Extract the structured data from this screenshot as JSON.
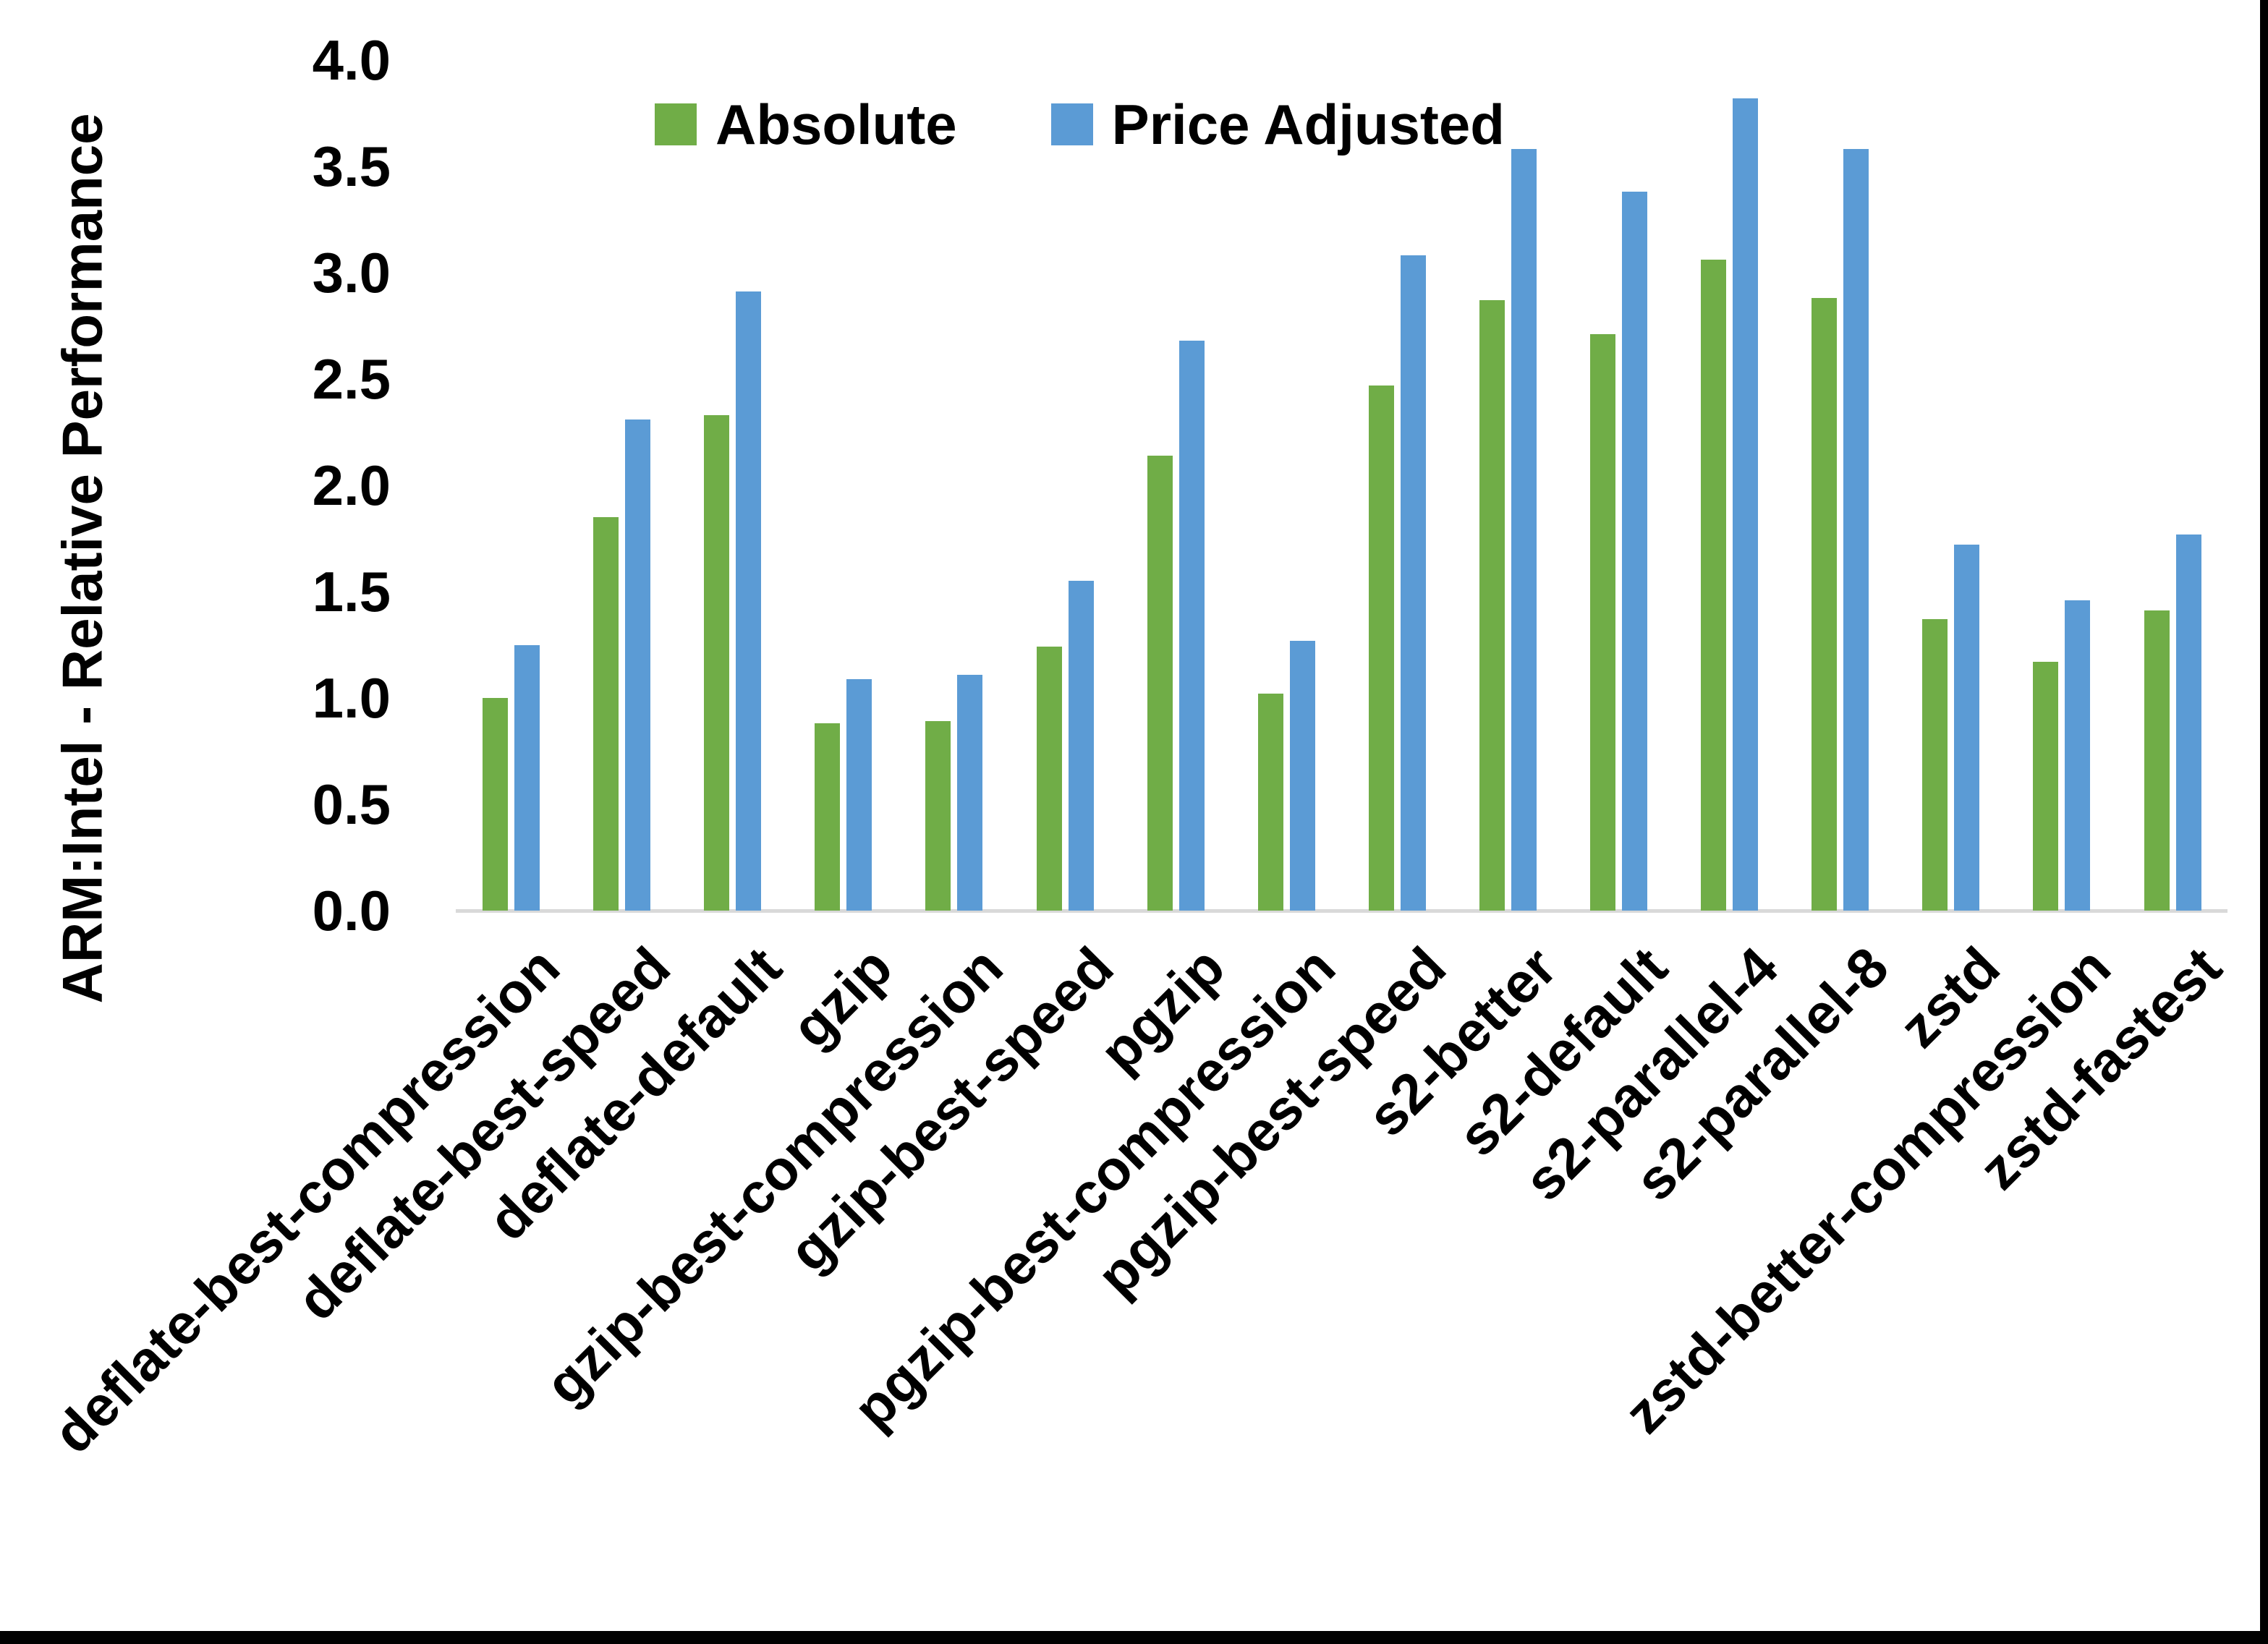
{
  "chart_data": {
    "type": "bar",
    "title": "",
    "xlabel": "",
    "ylabel": "ARM:Intel - Relative Performance",
    "ylim": [
      0.0,
      4.0
    ],
    "ytick_step": 0.5,
    "ytick_labels": [
      "0.0",
      "0.5",
      "1.0",
      "1.5",
      "2.0",
      "2.5",
      "3.0",
      "3.5",
      "4.0"
    ],
    "grid": false,
    "legend_position": "top-center",
    "axis_line_color": "#d9d9d9",
    "text_color": "#000000",
    "background_color": "#ffffff",
    "categories": [
      "deflate-best-compression",
      "deflate-best-speed",
      "deflate-default",
      "gzip",
      "gzip-best-compression",
      "gzip-best-speed",
      "pgzip",
      "pgzip-best-compression",
      "pgzip-best-speed",
      "s2-better",
      "s2-default",
      "s2-parallel-4",
      "s2-parallel-8",
      "zstd",
      "zstd-better-compression",
      "zstd-fastest"
    ],
    "series": [
      {
        "name": "Absolute",
        "color": "#70AD47",
        "values": [
          1.0,
          1.85,
          2.33,
          0.88,
          0.89,
          1.24,
          2.14,
          1.02,
          2.47,
          2.87,
          2.71,
          3.06,
          2.88,
          1.37,
          1.17,
          1.41
        ]
      },
      {
        "name": "Price Adjusted",
        "color": "#5B9BD5",
        "values": [
          1.25,
          2.31,
          2.91,
          1.09,
          1.11,
          1.55,
          2.68,
          1.27,
          3.08,
          3.58,
          3.38,
          3.82,
          3.58,
          1.72,
          1.46,
          1.77
        ]
      }
    ]
  }
}
